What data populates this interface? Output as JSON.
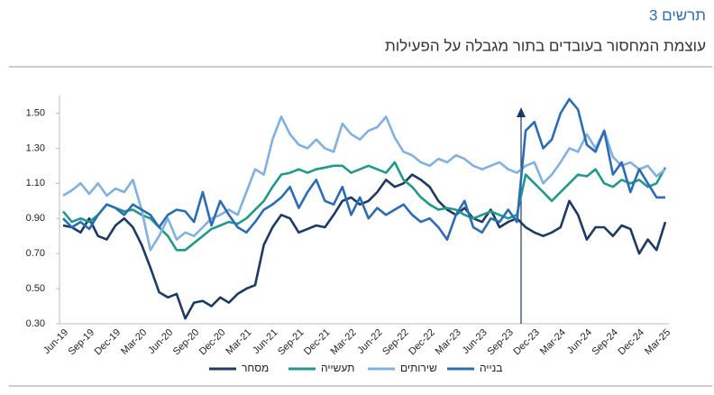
{
  "chart_data": {
    "type": "line",
    "label": "תרשים 3",
    "title": "עוצמת המחסור בעובדים בתור מגבלה על הפעילות",
    "categories": [
      "Jun-19",
      null,
      null,
      "Sep-19",
      null,
      null,
      "Dec-19",
      null,
      null,
      "Mar-20",
      null,
      null,
      "Jun-20",
      null,
      null,
      "Sep-20",
      null,
      null,
      "Dec-20",
      null,
      null,
      "Mar-21",
      null,
      null,
      "Jun-21",
      null,
      null,
      "Sep-21",
      null,
      null,
      "Dec-21",
      null,
      null,
      "Mar-22",
      null,
      null,
      "Jun-22",
      null,
      null,
      "Sep-22",
      null,
      null,
      "Dec-22",
      null,
      null,
      "Mar-23",
      null,
      null,
      "Jun-23",
      null,
      null,
      "Sep-23",
      null,
      null,
      "Dec-23",
      null,
      null,
      "Mar-24",
      null,
      null,
      "Jun-24",
      null,
      null,
      "Sep-24",
      null,
      null,
      "Dec-24",
      null,
      null,
      "Mar-25"
    ],
    "series": [
      {
        "name": "מסחר",
        "color": "#1b3a66",
        "values": [
          0.86,
          0.85,
          0.82,
          0.9,
          0.8,
          0.78,
          0.86,
          0.9,
          0.85,
          0.75,
          0.62,
          0.48,
          0.45,
          0.47,
          0.33,
          0.42,
          0.43,
          0.4,
          0.45,
          0.42,
          0.47,
          0.5,
          0.52,
          0.75,
          0.85,
          0.92,
          0.9,
          0.82,
          0.84,
          0.86,
          0.85,
          0.92,
          1.0,
          1.02,
          0.98,
          1.0,
          1.05,
          1.12,
          1.08,
          1.1,
          1.15,
          1.12,
          1.08,
          1.0,
          0.95,
          0.92,
          0.96,
          0.9,
          0.88,
          0.95,
          0.85,
          0.88,
          0.9,
          0.85,
          0.82,
          0.8,
          0.82,
          0.85,
          1.0,
          0.92,
          0.78,
          0.85,
          0.85,
          0.8,
          0.86,
          0.84,
          0.7,
          0.78,
          0.72,
          0.88
        ]
      },
      {
        "name": "תעשייה",
        "color": "#1f9a8a",
        "values": [
          0.94,
          0.88,
          0.9,
          0.88,
          0.92,
          0.98,
          0.96,
          0.94,
          0.95,
          0.92,
          0.9,
          0.85,
          0.8,
          0.72,
          0.72,
          0.76,
          0.8,
          0.84,
          0.86,
          0.88,
          0.87,
          0.9,
          0.95,
          1.0,
          1.08,
          1.15,
          1.16,
          1.18,
          1.16,
          1.18,
          1.19,
          1.2,
          1.2,
          1.16,
          1.18,
          1.2,
          1.18,
          1.16,
          1.22,
          1.12,
          1.08,
          1.02,
          0.98,
          0.95,
          0.96,
          0.95,
          0.92,
          0.9,
          0.92,
          0.94,
          0.92,
          0.9,
          0.92,
          1.15,
          1.1,
          1.05,
          1.0,
          1.05,
          1.1,
          1.15,
          1.14,
          1.18,
          1.1,
          1.08,
          1.12,
          1.1,
          1.12,
          1.08,
          1.1,
          1.19
        ]
      },
      {
        "name": "שירותים",
        "color": "#7fb1e3",
        "values": [
          1.03,
          1.06,
          1.1,
          1.04,
          1.1,
          1.03,
          1.07,
          1.05,
          1.12,
          0.95,
          0.72,
          0.8,
          0.9,
          0.78,
          0.82,
          0.8,
          0.85,
          0.9,
          0.92,
          0.95,
          0.92,
          1.05,
          1.18,
          1.15,
          1.35,
          1.48,
          1.38,
          1.32,
          1.3,
          1.35,
          1.3,
          1.28,
          1.44,
          1.38,
          1.35,
          1.4,
          1.42,
          1.48,
          1.36,
          1.28,
          1.26,
          1.22,
          1.2,
          1.24,
          1.22,
          1.26,
          1.24,
          1.2,
          1.18,
          1.2,
          1.22,
          1.18,
          1.16,
          1.2,
          1.22,
          1.1,
          1.15,
          1.22,
          1.3,
          1.28,
          1.38,
          1.3,
          1.4,
          1.25,
          1.2,
          1.22,
          1.18,
          1.2,
          1.14,
          1.18
        ]
      },
      {
        "name": "בנייה",
        "color": "#2a6db6",
        "values": [
          0.9,
          0.85,
          0.88,
          0.84,
          0.92,
          0.98,
          0.96,
          0.92,
          0.98,
          0.95,
          0.92,
          0.85,
          0.92,
          0.95,
          0.94,
          0.88,
          1.05,
          0.86,
          1.0,
          0.92,
          0.85,
          0.82,
          0.88,
          0.95,
          0.98,
          1.02,
          1.08,
          0.96,
          1.05,
          1.12,
          1.0,
          0.98,
          1.08,
          0.92,
          1.02,
          0.9,
          0.96,
          0.92,
          0.95,
          0.98,
          0.92,
          0.88,
          0.9,
          0.85,
          0.78,
          0.92,
          1.0,
          0.85,
          0.82,
          0.9,
          0.88,
          0.95,
          0.88,
          1.4,
          1.45,
          1.3,
          1.35,
          1.5,
          1.58,
          1.52,
          1.32,
          1.28,
          1.4,
          1.15,
          1.22,
          1.05,
          1.18,
          1.1,
          1.02,
          1.02
        ]
      }
    ],
    "ylim": [
      0.3,
      1.6
    ],
    "yticks": [
      {
        "value": 0.3,
        "label": "0.30"
      },
      {
        "value": 0.5,
        "label": "0.50"
      },
      {
        "value": 0.7,
        "label": "0.70"
      },
      {
        "value": 0.9,
        "label": "0.90"
      },
      {
        "value": 1.1,
        "label": "1.10"
      },
      {
        "value": 1.3,
        "label": "1.30"
      },
      {
        "value": 1.5,
        "label": "1.50"
      }
    ],
    "grid": false
  }
}
